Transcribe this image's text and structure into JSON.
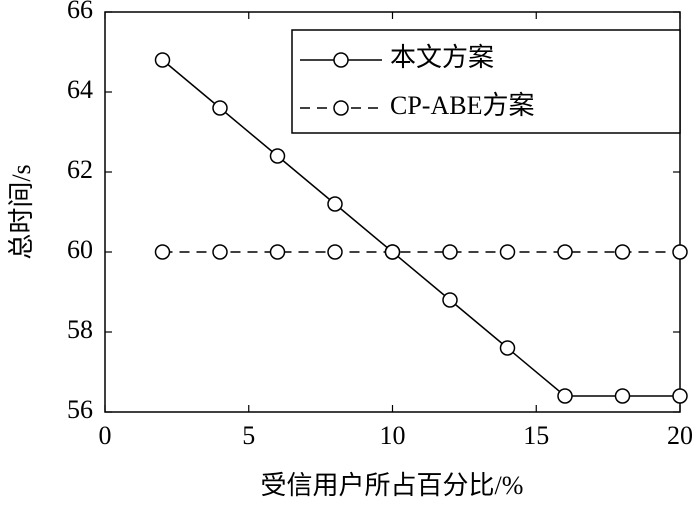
{
  "chart_data": {
    "type": "line",
    "x_label": "受信用户所占百分比/%",
    "y_label": "总时间/s",
    "x": [
      2,
      4,
      6,
      8,
      10,
      12,
      14,
      16,
      18,
      20
    ],
    "series": [
      {
        "name": "本文方案",
        "color": "#000000",
        "linestyle": "solid",
        "values": [
          64.8,
          63.6,
          62.4,
          61.2,
          60.0,
          58.8,
          57.6,
          56.4,
          56.4,
          56.4
        ]
      },
      {
        "name": "CP-ABE方案",
        "color": "#000000",
        "linestyle": "dashed",
        "values": [
          60,
          60,
          60,
          60,
          60,
          60,
          60,
          60,
          60,
          60
        ]
      }
    ],
    "xlim": [
      0,
      20
    ],
    "xticks": [
      0,
      5,
      10,
      15,
      20
    ],
    "ylim": [
      56,
      66
    ],
    "yticks": [
      56,
      58,
      60,
      62,
      64,
      66
    ],
    "legend": "upper right",
    "marker": "circle"
  }
}
